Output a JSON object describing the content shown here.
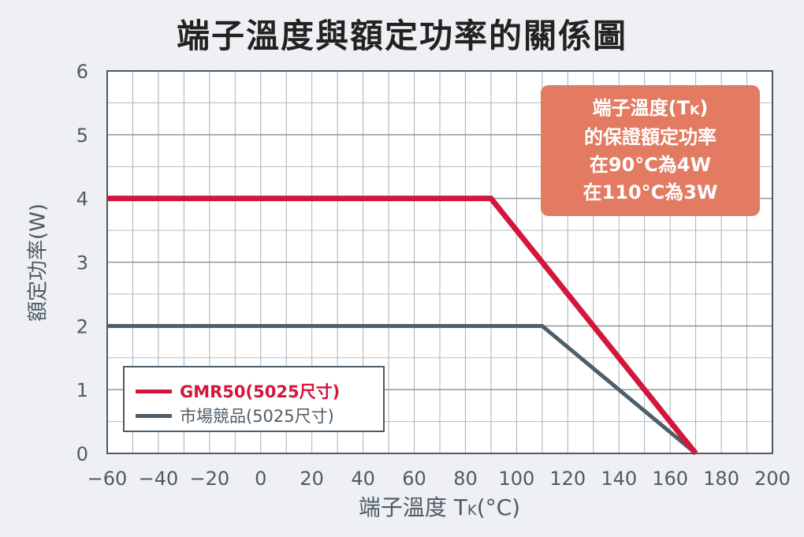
{
  "chart_data": {
    "type": "line",
    "title": "端子溫度與額定功率的關係圖",
    "xlabel": "端子溫度 T",
    "xlabel_sub": "K",
    "xlabel_unit": "(°C)",
    "ylabel": "額定功率(W)",
    "xlim": [
      -60,
      200
    ],
    "ylim": [
      0,
      6
    ],
    "x_ticks": [
      "−60",
      "−40",
      "−20",
      "0",
      "20",
      "40",
      "60",
      "80",
      "100",
      "120",
      "140",
      "160",
      "180",
      "200"
    ],
    "y_ticks": [
      "0",
      "1",
      "2",
      "3",
      "4",
      "5",
      "6"
    ],
    "grid": true,
    "legend_position": "bottom-left",
    "series": [
      {
        "name": "GMR50(5025尺寸)",
        "color": "#d4163c",
        "x": [
          -60,
          90,
          170
        ],
        "y": [
          4,
          4,
          0
        ]
      },
      {
        "name": "市場競品(5025尺寸)",
        "color": "#4d5f6a",
        "x": [
          -60,
          110,
          170
        ],
        "y": [
          2,
          2,
          0
        ]
      }
    ],
    "annotation": {
      "color": "#e27b62",
      "lines": [
        "端子溫度(TK)",
        "的保證額定功率",
        "在90°C為4W",
        "在110°C為3W"
      ]
    }
  }
}
